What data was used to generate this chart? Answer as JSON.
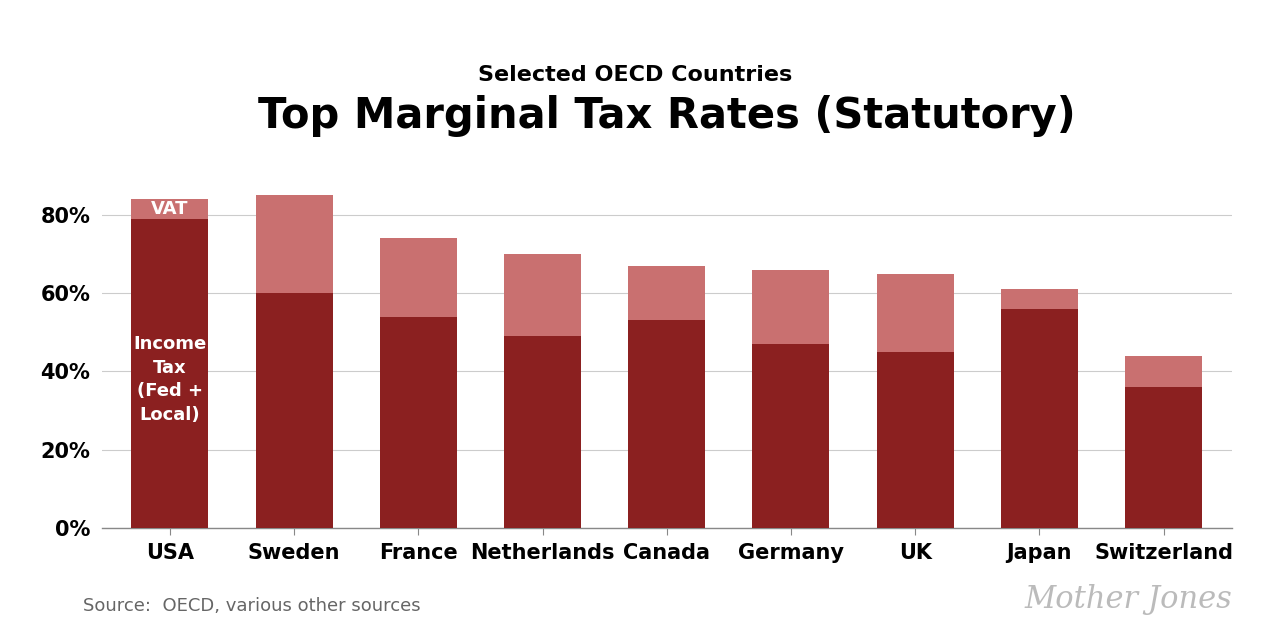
{
  "countries": [
    "USA",
    "Sweden",
    "France",
    "Netherlands",
    "Canada",
    "Germany",
    "UK",
    "Japan",
    "Switzerland"
  ],
  "income_tax": [
    79,
    60,
    54,
    49,
    53,
    47,
    45,
    56,
    36
  ],
  "vat": [
    5,
    25,
    20,
    21,
    14,
    19,
    20,
    5,
    8
  ],
  "income_tax_color": "#8B2020",
  "vat_color": "#C97070",
  "title": "Top Marginal Tax Rates (Statutory)",
  "subtitle": "Selected OECD Countries",
  "title_fontsize": 30,
  "subtitle_fontsize": 16,
  "tick_fontsize": 15,
  "label_fontsize": 13,
  "source_text": "Source:  OECD, various other sources",
  "source_fontsize": 13,
  "watermark_text": "Mother Jones",
  "watermark_fontsize": 22,
  "income_tax_label": "Income\nTax\n(Fed +\nLocal)",
  "vat_label": "VAT",
  "background_color": "#ffffff",
  "ylim": [
    0,
    100
  ],
  "yticks": [
    0,
    20,
    40,
    60,
    80
  ],
  "ytick_labels": [
    "0%",
    "20%",
    "40%",
    "60%",
    "80%"
  ],
  "bar_width": 0.62
}
